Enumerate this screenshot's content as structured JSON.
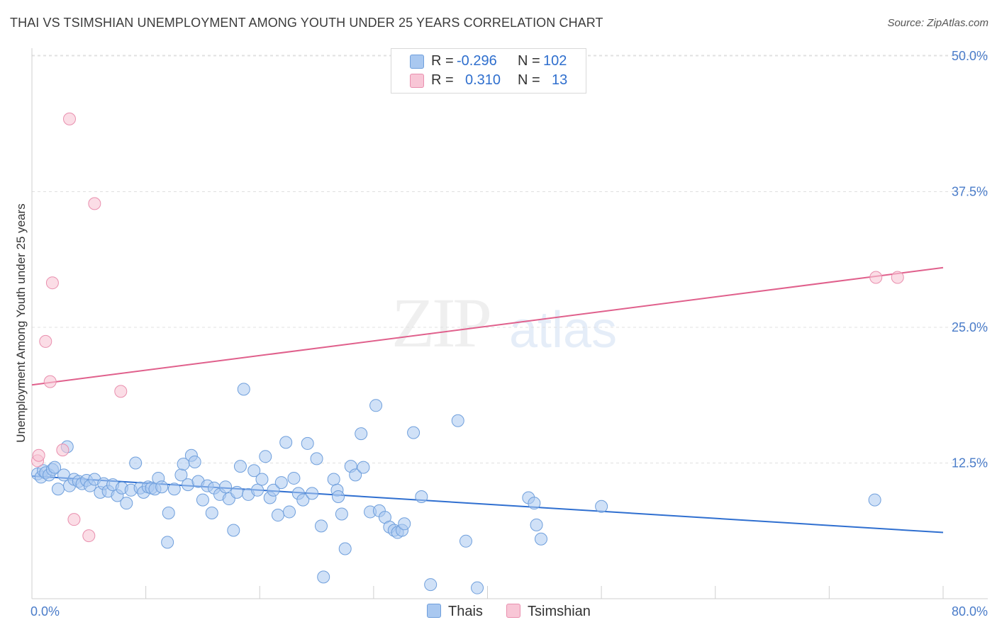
{
  "header": {
    "title": "THAI VS TSIMSHIAN UNEMPLOYMENT AMONG YOUTH UNDER 25 YEARS CORRELATION CHART",
    "source": "Source: ZipAtlas.com"
  },
  "watermark": {
    "zip": "ZIP",
    "atlas": "atlas"
  },
  "legend": {
    "rows": [
      {
        "r_label": "R =",
        "r_value": "-0.296",
        "n_label": "N =",
        "n_value": "102",
        "color": "#a9c8f0"
      },
      {
        "r_label": "R =",
        "r_value": "0.310",
        "n_label": "N =",
        "n_value": "13",
        "color": "#f5b8cc"
      }
    ],
    "bottom": [
      {
        "label": "Thais",
        "color": "#a9c8f0"
      },
      {
        "label": "Tsimshian",
        "color": "#f5b8cc"
      }
    ]
  },
  "colors": {
    "thai_fill": "#a9c8f0",
    "thai_stroke": "#6f9fdc",
    "thai_line": "#2f6fd0",
    "tsim_fill": "#f8c6d6",
    "tsim_stroke": "#e98fae",
    "tsim_line": "#e0608c",
    "grid": "#e0e0e0",
    "tick_text": "#4a7cc9"
  },
  "chart_data": {
    "type": "scatter",
    "title": "THAI VS TSIMSHIAN UNEMPLOYMENT AMONG YOUTH UNDER 25 YEARS CORRELATION CHART",
    "xlabel": "",
    "ylabel": "Unemployment Among Youth under 25 years",
    "xlim": [
      0,
      80
    ],
    "ylim": [
      0,
      52
    ],
    "x_tick_labels": [
      "0.0%",
      "80.0%"
    ],
    "y_ticks": [
      12.5,
      25.0,
      37.5,
      50.0
    ],
    "y_tick_labels": [
      "12.5%",
      "25.0%",
      "37.5%",
      "50.0%"
    ],
    "grid": "horizontal dashed",
    "legend_position": "top-center",
    "series": [
      {
        "name": "Thais",
        "trend": {
          "x": [
            0,
            80
          ],
          "y": [
            11.3,
            6.1
          ]
        },
        "points": [
          [
            0.5,
            11.5
          ],
          [
            0.8,
            11.2
          ],
          [
            1.0,
            11.8
          ],
          [
            1.2,
            11.6
          ],
          [
            1.5,
            11.4
          ],
          [
            1.8,
            11.9
          ],
          [
            2.0,
            12.1
          ],
          [
            2.3,
            10.1
          ],
          [
            2.8,
            11.4
          ],
          [
            3.1,
            14.0
          ],
          [
            3.3,
            10.4
          ],
          [
            3.7,
            11.0
          ],
          [
            4.1,
            10.8
          ],
          [
            4.4,
            10.6
          ],
          [
            4.8,
            10.9
          ],
          [
            5.1,
            10.4
          ],
          [
            5.5,
            11.0
          ],
          [
            6.0,
            9.8
          ],
          [
            6.3,
            10.6
          ],
          [
            6.7,
            9.9
          ],
          [
            7.1,
            10.5
          ],
          [
            7.5,
            9.5
          ],
          [
            7.9,
            10.2
          ],
          [
            8.3,
            8.8
          ],
          [
            8.7,
            10.0
          ],
          [
            9.1,
            12.5
          ],
          [
            9.5,
            10.2
          ],
          [
            9.8,
            9.8
          ],
          [
            10.2,
            10.3
          ],
          [
            10.5,
            10.2
          ],
          [
            10.8,
            10.1
          ],
          [
            11.1,
            11.1
          ],
          [
            11.4,
            10.3
          ],
          [
            12.0,
            7.9
          ],
          [
            11.9,
            5.2
          ],
          [
            12.5,
            10.1
          ],
          [
            13.1,
            11.4
          ],
          [
            13.3,
            12.4
          ],
          [
            13.7,
            10.5
          ],
          [
            14.0,
            13.2
          ],
          [
            14.3,
            12.6
          ],
          [
            14.6,
            10.8
          ],
          [
            15.0,
            9.1
          ],
          [
            15.4,
            10.4
          ],
          [
            15.8,
            7.9
          ],
          [
            16.0,
            10.2
          ],
          [
            16.5,
            9.6
          ],
          [
            17.0,
            10.3
          ],
          [
            17.3,
            9.2
          ],
          [
            17.7,
            6.3
          ],
          [
            18.0,
            9.8
          ],
          [
            18.3,
            12.2
          ],
          [
            18.6,
            19.3
          ],
          [
            19.0,
            9.6
          ],
          [
            19.5,
            11.8
          ],
          [
            19.8,
            10.0
          ],
          [
            20.2,
            11.0
          ],
          [
            20.5,
            13.1
          ],
          [
            20.9,
            9.3
          ],
          [
            21.2,
            10.0
          ],
          [
            21.6,
            7.7
          ],
          [
            21.9,
            10.7
          ],
          [
            22.3,
            14.4
          ],
          [
            22.6,
            8.0
          ],
          [
            23.0,
            11.1
          ],
          [
            23.4,
            9.7
          ],
          [
            23.8,
            9.1
          ],
          [
            24.2,
            14.3
          ],
          [
            24.6,
            9.7
          ],
          [
            25.0,
            12.9
          ],
          [
            25.4,
            6.7
          ],
          [
            25.6,
            2.0
          ],
          [
            26.5,
            11.0
          ],
          [
            26.8,
            10.0
          ],
          [
            26.9,
            9.4
          ],
          [
            27.2,
            7.8
          ],
          [
            27.5,
            4.6
          ],
          [
            28.0,
            12.2
          ],
          [
            28.4,
            11.4
          ],
          [
            28.9,
            15.2
          ],
          [
            29.1,
            12.1
          ],
          [
            29.7,
            8.0
          ],
          [
            30.2,
            17.8
          ],
          [
            30.5,
            8.1
          ],
          [
            31.0,
            7.5
          ],
          [
            31.4,
            6.6
          ],
          [
            31.8,
            6.3
          ],
          [
            32.1,
            6.1
          ],
          [
            32.5,
            6.3
          ],
          [
            32.7,
            6.9
          ],
          [
            33.5,
            15.3
          ],
          [
            34.2,
            9.4
          ],
          [
            35.0,
            1.3
          ],
          [
            37.4,
            16.4
          ],
          [
            38.1,
            5.3
          ],
          [
            39.1,
            1.0
          ],
          [
            43.6,
            9.3
          ],
          [
            44.1,
            8.8
          ],
          [
            44.3,
            6.8
          ],
          [
            44.7,
            5.5
          ],
          [
            50.0,
            8.5
          ],
          [
            74.0,
            9.1
          ]
        ]
      },
      {
        "name": "Tsimshian",
        "trend": {
          "x": [
            0,
            80
          ],
          "y": [
            19.7,
            30.5
          ]
        },
        "points": [
          [
            0.5,
            12.7
          ],
          [
            0.6,
            13.2
          ],
          [
            1.2,
            23.7
          ],
          [
            1.6,
            20.0
          ],
          [
            1.8,
            29.1
          ],
          [
            2.7,
            13.7
          ],
          [
            3.3,
            44.2
          ],
          [
            3.7,
            7.3
          ],
          [
            5.0,
            5.8
          ],
          [
            5.5,
            36.4
          ],
          [
            7.8,
            19.1
          ],
          [
            74.1,
            29.6
          ],
          [
            76.0,
            29.6
          ]
        ]
      }
    ]
  }
}
